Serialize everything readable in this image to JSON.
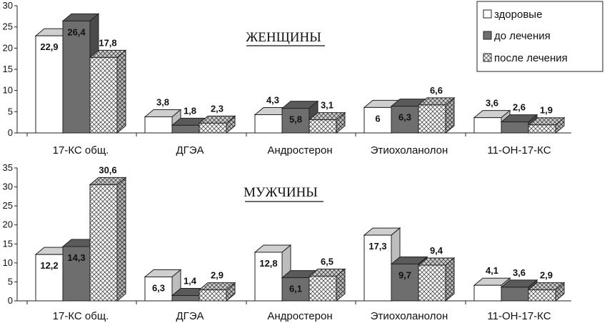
{
  "chart_data": [
    {
      "type": "bar",
      "title": "ЖЕНЩИНЫ",
      "categories": [
        "17-КС общ.",
        "ДГЭА",
        "Андростерон",
        "Этиохоланолон",
        "11-ОН-17-КС"
      ],
      "series": [
        {
          "name": "здоровые",
          "values": [
            22.9,
            3.8,
            4.3,
            6,
            3.6
          ]
        },
        {
          "name": "до лечения",
          "values": [
            26.4,
            1.8,
            5.8,
            6.3,
            2.6
          ]
        },
        {
          "name": "после лечения",
          "values": [
            17.8,
            2.3,
            3.1,
            6.6,
            1.9
          ]
        }
      ],
      "value_labels": [
        [
          "22,9",
          "3,8",
          "4,3",
          "6",
          "3,6"
        ],
        [
          "26,4",
          "1,8",
          "5,8",
          "6,3",
          "2,6"
        ],
        [
          "17,8",
          "2,3",
          "3,1",
          "6,6",
          "1,9"
        ]
      ],
      "ylim": [
        0,
        30
      ],
      "yticks": [
        0,
        5,
        10,
        15,
        20,
        25,
        30
      ],
      "legend": "top-right",
      "grid": false,
      "style": "3d-bars"
    },
    {
      "type": "bar",
      "title": "МУЖЧИНЫ",
      "categories": [
        "17-КС общ.",
        "ДГЭА",
        "Андростерон",
        "Этиохоланолон",
        "11-ОН-17-КС"
      ],
      "series": [
        {
          "name": "здоровые",
          "values": [
            12.2,
            6.3,
            12.8,
            17.3,
            4.1
          ]
        },
        {
          "name": "до лечения",
          "values": [
            14.3,
            1.4,
            6.1,
            9.7,
            3.6
          ]
        },
        {
          "name": "после лечения",
          "values": [
            30.6,
            2.9,
            6.5,
            9.4,
            2.9
          ]
        }
      ],
      "value_labels": [
        [
          "12,2",
          "6,3",
          "12,8",
          "17,3",
          "4,1"
        ],
        [
          "14,3",
          "1,4",
          "6,1",
          "9,7",
          "3,6"
        ],
        [
          "30,6",
          "2,9",
          "6,5",
          "9,4",
          "2,9"
        ]
      ],
      "ylim": [
        0,
        35
      ],
      "yticks": [
        0,
        5,
        10,
        15,
        20,
        25,
        30,
        35
      ],
      "grid": false,
      "style": "3d-bars"
    }
  ],
  "colors": {
    "healthy": "#ffffff",
    "before": "#6e6e6e",
    "after_pattern": "crosshatch",
    "outline": "#222222",
    "top_healthy": "#cfcfcf",
    "side_healthy": "#bdbdbd",
    "top_before": "#5a5a5a",
    "side_before": "#4a4a4a",
    "top_after": "#9a9a9a",
    "side_after": "#8a8a8a"
  }
}
